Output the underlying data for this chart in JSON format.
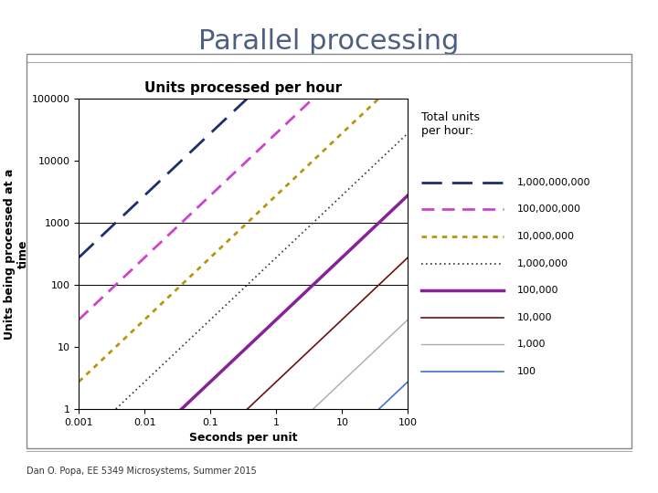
{
  "title": "Parallel processing",
  "chart_title": "Units processed per hour",
  "xlabel": "Seconds per unit",
  "ylabel": "Units being processed at a\ntime",
  "legend_title": "Total units\nper hour:",
  "footer": "Dan O. Popa, EE 5349 Microsystems, Summer 2015",
  "x_range": [
    0.001,
    100
  ],
  "y_range": [
    1,
    100000
  ],
  "series": [
    {
      "N": 1000000000,
      "label": "1,000,000,000",
      "color": "#1f2d6e",
      "linestyle": "dashed",
      "linewidth": 2.0,
      "dash": [
        8,
        4
      ]
    },
    {
      "N": 100000000,
      "label": "100,000,000",
      "color": "#cc44cc",
      "linestyle": "dashed",
      "linewidth": 2.0,
      "dash": [
        5,
        3
      ]
    },
    {
      "N": 10000000,
      "label": "10,000,000",
      "color": "#b8960c",
      "linestyle": "dotted",
      "linewidth": 2.0,
      "dash": [
        2,
        2
      ]
    },
    {
      "N": 1000000,
      "label": "1,000,000",
      "color": "#333333",
      "linestyle": "dotted",
      "linewidth": 1.2,
      "dash": [
        1,
        2
      ]
    },
    {
      "N": 100000,
      "label": "100,000",
      "color": "#882299",
      "linestyle": "solid",
      "linewidth": 2.5,
      "dash": []
    },
    {
      "N": 10000,
      "label": "10,000",
      "color": "#6b1010",
      "linestyle": "solid",
      "linewidth": 1.2,
      "dash": []
    },
    {
      "N": 1000,
      "label": "1,000",
      "color": "#aaaaaa",
      "linestyle": "solid",
      "linewidth": 1.0,
      "dash": []
    },
    {
      "N": 100,
      "label": "100",
      "color": "#4472c4",
      "linestyle": "solid",
      "linewidth": 1.2,
      "dash": []
    }
  ],
  "hlines": [
    100,
    1000
  ],
  "title_color": "#4d6080",
  "title_fontsize": 22,
  "chart_title_fontsize": 11,
  "axis_label_fontsize": 9,
  "tick_fontsize": 8,
  "legend_title_fontsize": 9,
  "legend_fontsize": 8
}
